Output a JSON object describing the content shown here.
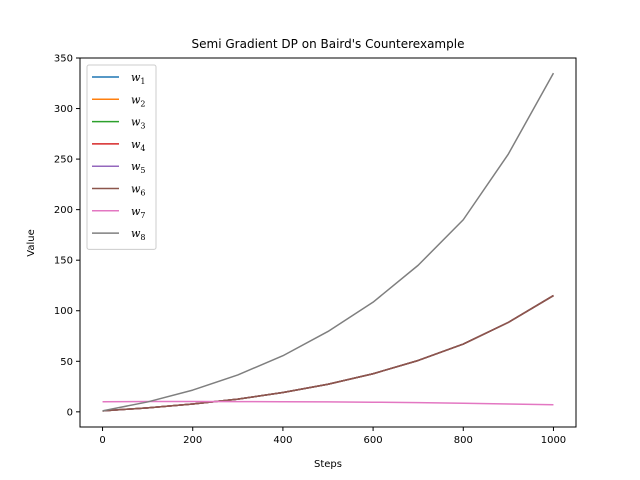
{
  "chart_data": {
    "type": "line",
    "title": "Semi Gradient DP on Baird's Counterexample",
    "xlabel": "Steps",
    "ylabel": "Value",
    "xlim": [
      -50,
      1050
    ],
    "ylim": [
      -15,
      350
    ],
    "xticks": [
      0,
      200,
      400,
      600,
      800,
      1000
    ],
    "yticks": [
      0,
      50,
      100,
      150,
      200,
      250,
      300,
      350
    ],
    "grid": false,
    "legend_position": "top-left",
    "x": [
      0,
      100,
      200,
      300,
      400,
      500,
      600,
      700,
      800,
      900,
      1000
    ],
    "series": [
      {
        "name": "w",
        "sub": "1",
        "color": "#1f77b4",
        "values": [
          1,
          3.9,
          7.7,
          12.6,
          19.1,
          27.3,
          37.7,
          50.8,
          67.0,
          88.5,
          115
        ]
      },
      {
        "name": "w",
        "sub": "2",
        "color": "#ff7f0e",
        "values": [
          1,
          3.9,
          7.7,
          12.6,
          19.1,
          27.3,
          37.7,
          50.8,
          67.0,
          88.5,
          115
        ]
      },
      {
        "name": "w",
        "sub": "3",
        "color": "#2ca02c",
        "values": [
          1,
          3.9,
          7.7,
          12.6,
          19.1,
          27.3,
          37.7,
          50.8,
          67.0,
          88.5,
          115
        ]
      },
      {
        "name": "w",
        "sub": "4",
        "color": "#d62728",
        "values": [
          1,
          3.9,
          7.7,
          12.6,
          19.1,
          27.3,
          37.7,
          50.8,
          67.0,
          88.5,
          115
        ]
      },
      {
        "name": "w",
        "sub": "5",
        "color": "#9467bd",
        "values": [
          1,
          3.9,
          7.7,
          12.6,
          19.1,
          27.3,
          37.7,
          50.8,
          67.0,
          88.5,
          115
        ]
      },
      {
        "name": "w",
        "sub": "6",
        "color": "#8c564b",
        "values": [
          1,
          3.9,
          7.7,
          12.6,
          19.1,
          27.3,
          37.7,
          50.8,
          67.0,
          88.5,
          115
        ]
      },
      {
        "name": "w",
        "sub": "7",
        "color": "#e377c2",
        "values": [
          10,
          10.2,
          10.2,
          10.1,
          10.0,
          9.8,
          9.5,
          9.1,
          8.5,
          7.8,
          7
        ]
      },
      {
        "name": "w",
        "sub": "8",
        "color": "#7f7f7f",
        "values": [
          1,
          9.8,
          21.5,
          36.5,
          55.5,
          79.5,
          108.5,
          145.0,
          190.0,
          255.0,
          335
        ]
      }
    ]
  }
}
